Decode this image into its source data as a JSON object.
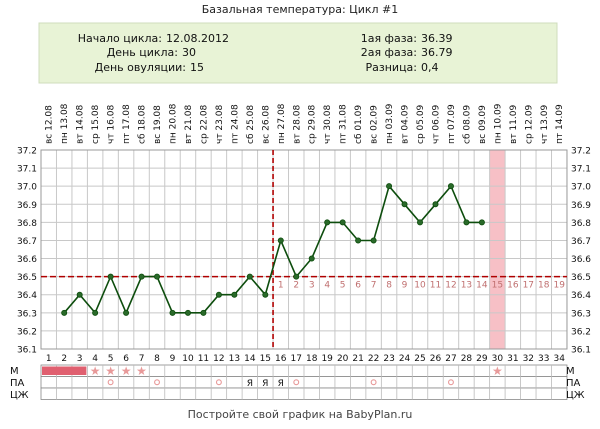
{
  "title": "Базальная температура: Цикл #1",
  "info": {
    "start_label": "Начало цикла:",
    "start_value": "12.08.2012",
    "day_label": "День цикла:",
    "day_value": "30",
    "ovulation_label": "День овуляции:",
    "ovulation_value": "15",
    "phase1_label": "1ая фаза:",
    "phase1_value": "36.39",
    "phase2_label": "2ая фаза:",
    "phase2_value": "36.79",
    "diff_label": "Разница:",
    "diff_value": "0,4"
  },
  "footer": "Постройте свой график на BabyPlan.ru",
  "row_labels": {
    "m": "М",
    "pa": "ПА",
    "cm": "ЦЖ"
  },
  "colors": {
    "info_bg": "#e8f3d6",
    "line": "#0d4d0d",
    "point": "#2a6a2a",
    "coverline": "#b00000",
    "highlight": "#f7c0c6",
    "grid": "#c8c8c8",
    "menses_bar": "#e06070",
    "marker": "#e89a9a",
    "post_day_labels": "#c07070"
  },
  "chart_data": {
    "type": "line",
    "ylim": [
      36.1,
      37.2
    ],
    "y_ticks": [
      "36.1",
      "36.2",
      "36.3",
      "36.4",
      "36.5",
      "36.6",
      "36.7",
      "36.8",
      "36.9",
      "37.0",
      "37.1",
      "37.2"
    ],
    "days": [
      "1",
      "2",
      "3",
      "4",
      "5",
      "6",
      "7",
      "8",
      "9",
      "10",
      "11",
      "12",
      "13",
      "14",
      "15",
      "16",
      "17",
      "18",
      "19",
      "20",
      "21",
      "22",
      "23",
      "24",
      "25",
      "26",
      "27",
      "28",
      "29",
      "30",
      "31",
      "32",
      "33",
      "34"
    ],
    "dates": [
      "12.08",
      "13.08",
      "14.08",
      "15.08",
      "16.08",
      "17.08",
      "18.08",
      "19.08",
      "20.08",
      "21.08",
      "22.08",
      "23.08",
      "24.08",
      "25.08",
      "26.08",
      "27.08",
      "28.08",
      "29.08",
      "30.08",
      "31.08",
      "01.09",
      "02.09",
      "03.09",
      "04.09",
      "05.09",
      "06.09",
      "07.09",
      "08.09",
      "09.09",
      "10.09",
      "11.09",
      "12.09",
      "13.09",
      "14.09"
    ],
    "weekdays": [
      "вс",
      "пн",
      "вт",
      "ср",
      "чт",
      "пт",
      "сб",
      "вс",
      "пн",
      "вт",
      "ср",
      "чт",
      "пт",
      "сб",
      "вс",
      "пн",
      "вт",
      "ср",
      "чт",
      "пт",
      "сб",
      "вс",
      "пн",
      "вт",
      "ср",
      "чт",
      "пт",
      "сб",
      "вс",
      "пн",
      "вт",
      "ср",
      "чт",
      "пт"
    ],
    "series": [
      {
        "values": [
          null,
          36.3,
          36.4,
          36.3,
          36.5,
          36.3,
          36.5,
          36.5,
          36.3,
          36.3,
          36.3,
          36.4,
          36.4,
          36.5,
          36.4,
          36.7,
          36.5,
          36.6,
          36.8,
          36.8,
          36.7,
          36.7,
          37.0,
          36.9,
          36.8,
          36.9,
          37.0,
          36.8,
          36.8,
          null,
          null,
          null,
          null,
          null
        ]
      }
    ],
    "coverline": 36.5,
    "ovulation_day": 15,
    "highlight_day": 30,
    "post_ovulation_labels": [
      "1",
      "2",
      "3",
      "4",
      "5",
      "6",
      "7",
      "8",
      "9",
      "10",
      "11",
      "12",
      "13",
      "14",
      "15",
      "16",
      "17",
      "18",
      "19"
    ],
    "menses_days": [
      1,
      3
    ],
    "star_days": [
      4,
      5,
      6,
      7,
      30
    ],
    "pa_circle_days": [
      5,
      8,
      12,
      17,
      22,
      27
    ],
    "pa_letter": "Я",
    "pa_letter_days": [
      14,
      15,
      16
    ]
  }
}
